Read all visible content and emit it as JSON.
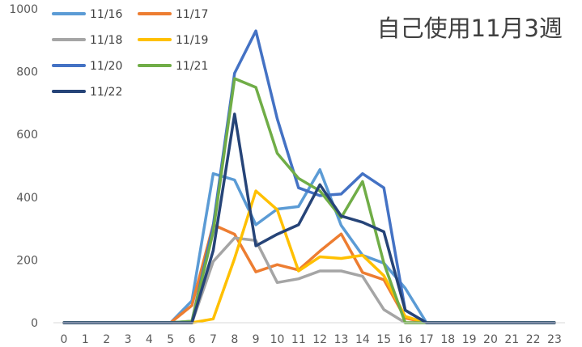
{
  "chart_data": {
    "type": "line",
    "title": "自己使用11月3週",
    "x": [
      0,
      1,
      2,
      3,
      4,
      5,
      6,
      7,
      8,
      9,
      10,
      11,
      12,
      13,
      14,
      15,
      16,
      17,
      18,
      19,
      20,
      21,
      22,
      23
    ],
    "ylim": [
      0,
      1000
    ],
    "yticks": [
      0,
      200,
      400,
      600,
      800,
      1000
    ],
    "grid": false,
    "legend": "top-left",
    "series": [
      {
        "name": "11/16",
        "color": "#5B9BD5",
        "values": [
          0,
          0,
          0,
          0,
          0,
          0,
          70,
          475,
          455,
          312,
          362,
          370,
          488,
          310,
          215,
          190,
          110,
          0,
          0,
          0,
          0,
          0,
          0,
          0
        ]
      },
      {
        "name": "11/17",
        "color": "#ED7D31",
        "values": [
          0,
          0,
          0,
          0,
          0,
          0,
          55,
          312,
          282,
          162,
          185,
          168,
          228,
          283,
          160,
          137,
          15,
          0,
          0,
          0,
          0,
          0,
          0,
          0
        ]
      },
      {
        "name": "11/18",
        "color": "#A5A5A5",
        "values": [
          0,
          0,
          0,
          0,
          0,
          0,
          0,
          195,
          270,
          262,
          128,
          140,
          165,
          165,
          148,
          42,
          0,
          0,
          0,
          0,
          0,
          0,
          0,
          0
        ]
      },
      {
        "name": "11/19",
        "color": "#FFC000",
        "values": [
          0,
          0,
          0,
          0,
          0,
          0,
          0,
          12,
          205,
          420,
          360,
          165,
          210,
          205,
          215,
          150,
          20,
          0,
          0,
          0,
          0,
          0,
          0,
          0
        ]
      },
      {
        "name": "11/20",
        "color": "#4472C4",
        "values": [
          0,
          0,
          0,
          0,
          0,
          0,
          5,
          310,
          795,
          930,
          650,
          430,
          405,
          410,
          475,
          430,
          40,
          0,
          0,
          0,
          0,
          0,
          0,
          0
        ]
      },
      {
        "name": "11/21",
        "color": "#70AD47",
        "values": [
          0,
          0,
          0,
          0,
          0,
          0,
          5,
          290,
          778,
          750,
          540,
          460,
          420,
          335,
          450,
          190,
          0,
          0,
          0,
          0,
          0,
          0,
          0,
          0
        ]
      },
      {
        "name": "11/22",
        "color": "#264478",
        "values": [
          0,
          0,
          0,
          0,
          0,
          0,
          0,
          230,
          665,
          245,
          282,
          312,
          440,
          340,
          320,
          290,
          40,
          0,
          0,
          0,
          0,
          0,
          0,
          0
        ]
      }
    ]
  }
}
